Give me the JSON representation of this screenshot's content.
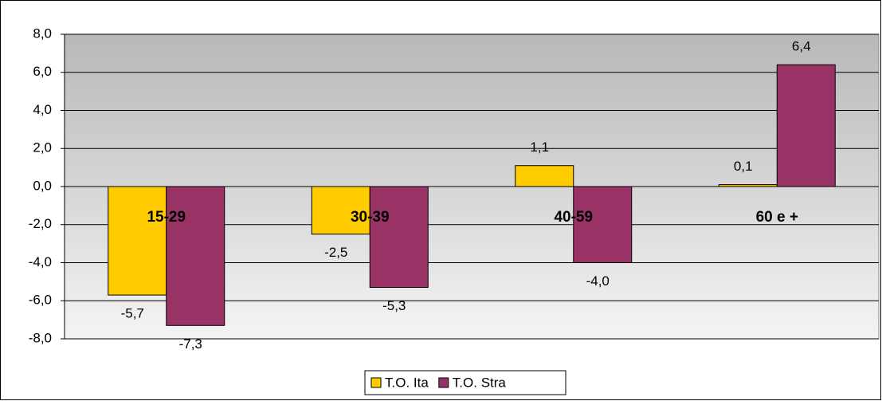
{
  "chart_data": {
    "type": "bar",
    "categories": [
      "15-29",
      "30-39",
      "40-59",
      "60 e +"
    ],
    "series": [
      {
        "name": "T.O. Ita",
        "color": "#ffcc00",
        "values": [
          -5.7,
          -2.5,
          1.1,
          0.1
        ],
        "value_labels": [
          "-5,7",
          "-2,5",
          "1,1",
          "0,1"
        ]
      },
      {
        "name": "T.O. Stra",
        "color": "#993366",
        "values": [
          -7.3,
          -5.3,
          -4.0,
          6.4
        ],
        "value_labels": [
          "-7,3",
          "-5,3",
          "-4,0",
          "6,4"
        ]
      }
    ],
    "ylim": [
      -8,
      8
    ],
    "yticks": [
      {
        "value": -8,
        "label": "-8,0"
      },
      {
        "value": -6,
        "label": "-6,0"
      },
      {
        "value": -4,
        "label": "-4,0"
      },
      {
        "value": -2,
        "label": "-2,0"
      },
      {
        "value": 0,
        "label": "0,0"
      },
      {
        "value": 2,
        "label": "2,0"
      },
      {
        "value": 4,
        "label": "4,0"
      },
      {
        "value": 6,
        "label": "6,0"
      },
      {
        "value": 8,
        "label": "8,0"
      }
    ],
    "grid": true,
    "legend": "bottom"
  }
}
